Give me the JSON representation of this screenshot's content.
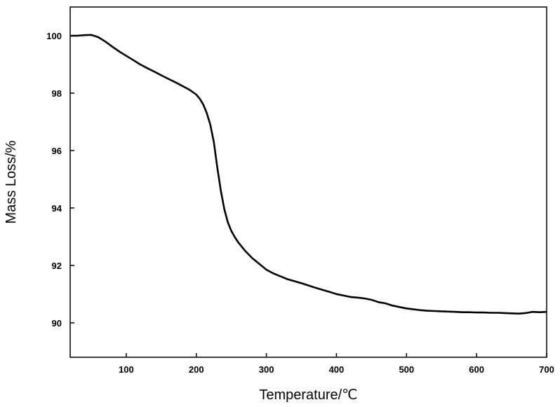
{
  "chart_data": {
    "type": "line",
    "title": "",
    "xlabel": "Temperature/℃",
    "ylabel": "Mass Loss/%",
    "xlim": [
      20,
      700
    ],
    "ylim": [
      88.8,
      101
    ],
    "x_ticks": [
      100,
      200,
      300,
      400,
      500,
      600,
      700
    ],
    "y_ticks": [
      90,
      92,
      94,
      96,
      98,
      100
    ],
    "grid": false,
    "legend": "none",
    "line_color": "#000000",
    "series": [
      {
        "x": [
          20,
          30,
          40,
          50,
          60,
          70,
          80,
          90,
          100,
          110,
          120,
          130,
          140,
          150,
          160,
          170,
          180,
          190,
          200,
          205,
          210,
          215,
          220,
          225,
          230,
          235,
          240,
          245,
          250,
          255,
          260,
          270,
          280,
          290,
          300,
          310,
          320,
          330,
          340,
          350,
          360,
          370,
          380,
          390,
          400,
          410,
          420,
          430,
          440,
          450,
          460,
          470,
          480,
          490,
          500,
          510,
          520,
          530,
          540,
          550,
          560,
          570,
          580,
          590,
          600,
          610,
          620,
          630,
          640,
          650,
          660,
          670,
          680,
          690,
          700
        ],
        "y": [
          100.0,
          100.0,
          100.02,
          100.03,
          99.95,
          99.8,
          99.62,
          99.45,
          99.3,
          99.15,
          99.0,
          98.87,
          98.75,
          98.62,
          98.5,
          98.38,
          98.25,
          98.12,
          97.95,
          97.8,
          97.6,
          97.3,
          96.9,
          96.3,
          95.4,
          94.6,
          93.95,
          93.5,
          93.2,
          92.98,
          92.8,
          92.5,
          92.25,
          92.05,
          91.85,
          91.72,
          91.62,
          91.52,
          91.45,
          91.38,
          91.3,
          91.22,
          91.15,
          91.08,
          91.0,
          90.95,
          90.9,
          90.88,
          90.85,
          90.8,
          90.72,
          90.68,
          90.6,
          90.55,
          90.5,
          90.47,
          90.44,
          90.42,
          90.41,
          90.4,
          90.39,
          90.38,
          90.37,
          90.37,
          90.36,
          90.36,
          90.35,
          90.35,
          90.34,
          90.33,
          90.32,
          90.34,
          90.38,
          90.37,
          90.38
        ]
      }
    ]
  }
}
